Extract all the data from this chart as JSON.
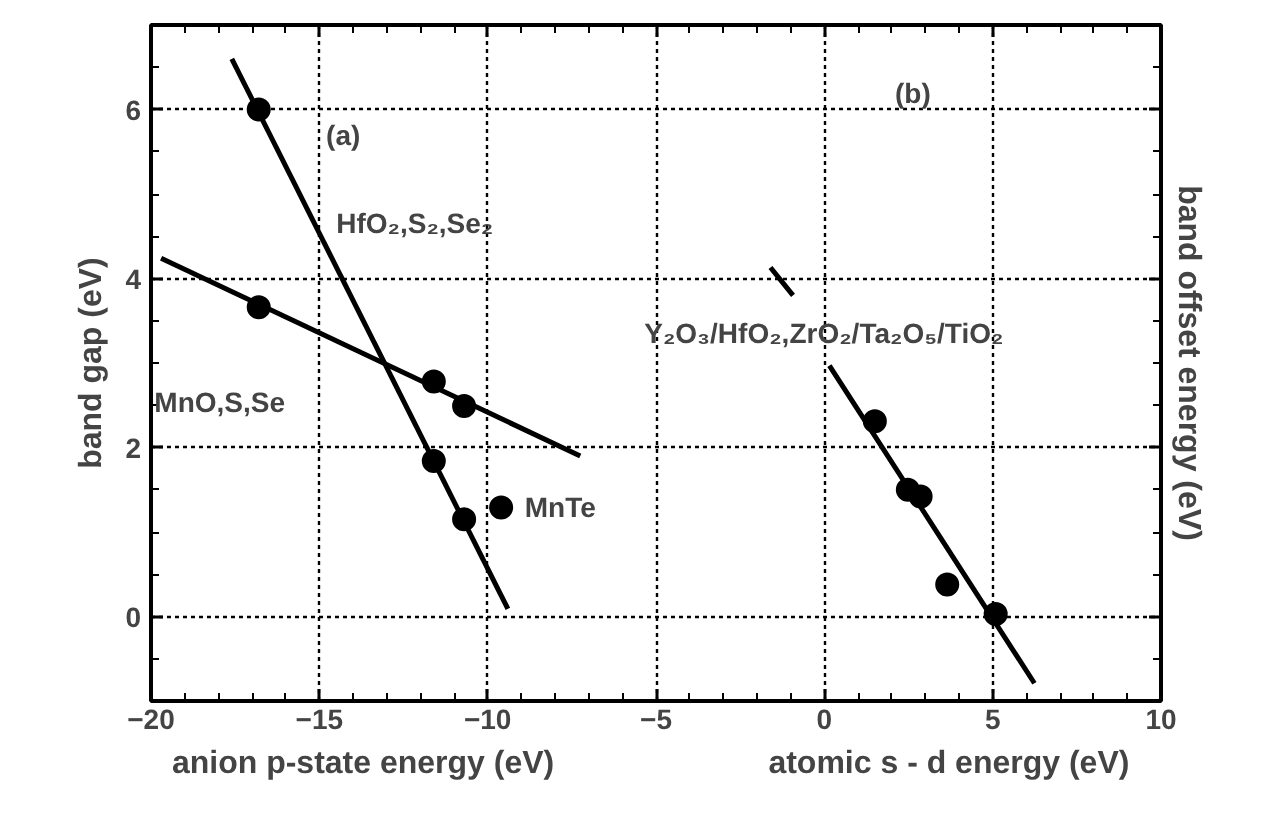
{
  "chart_data": {
    "type": "line",
    "xlabel": "anion p-state energy (eV)",
    "ylabel": "band gap (eV)",
    "y2label": "band offset energy (eV)",
    "xlim": [
      -20,
      10
    ],
    "ylim": [
      -1,
      7
    ],
    "xticks": [
      -20,
      -15,
      -10,
      -5,
      0,
      5,
      10
    ],
    "yticks": [
      0,
      2,
      4,
      6
    ],
    "grid": true,
    "series": [
      {
        "color": "#000000",
        "x": [
          -17.6,
          -9.4
        ],
        "values": [
          6.6,
          0.09
        ]
      },
      {
        "color": "#000000",
        "x": [
          -19.7,
          -7.25
        ],
        "values": [
          4.24,
          1.9
        ]
      },
      {
        "color": "#000000",
        "x": [
          -1.6,
          -0.93,
          -0.4,
          0.15,
          6.24
        ],
        "values": [
          4.13,
          3.8,
          null,
          2.97,
          -0.79
        ]
      },
      {
        "type": "scatter",
        "color": "#000000",
        "marker": "circle",
        "x": [
          -16.8,
          -11.6,
          -10.7
        ],
        "values": [
          6.0,
          1.84,
          1.15
        ]
      },
      {
        "type": "scatter",
        "color": "#000000",
        "marker": "circle",
        "x": [
          -16.8,
          -11.6,
          -10.7
        ],
        "values": [
          3.66,
          2.78,
          2.49
        ]
      },
      {
        "type": "scatter",
        "color": "#000000",
        "marker": "circle",
        "x": [
          -9.6
        ],
        "values": [
          1.29
        ]
      },
      {
        "type": "scatter",
        "color": "#000000",
        "marker": "circle",
        "x": [
          1.5,
          2.48,
          2.86,
          3.65,
          5.09
        ],
        "values": [
          2.31,
          1.5,
          1.42,
          0.38,
          0.03
        ]
      }
    ],
    "annotations": [
      "(a)",
      "HfO₂,S₂,Se₂",
      "MnO,S,Se",
      "MnTe",
      "(b)",
      "Y₂O₃/HfO₂,ZrO₂/Ta₂O₅/TiO₂",
      "atomic s - d energy (eV)"
    ]
  }
}
